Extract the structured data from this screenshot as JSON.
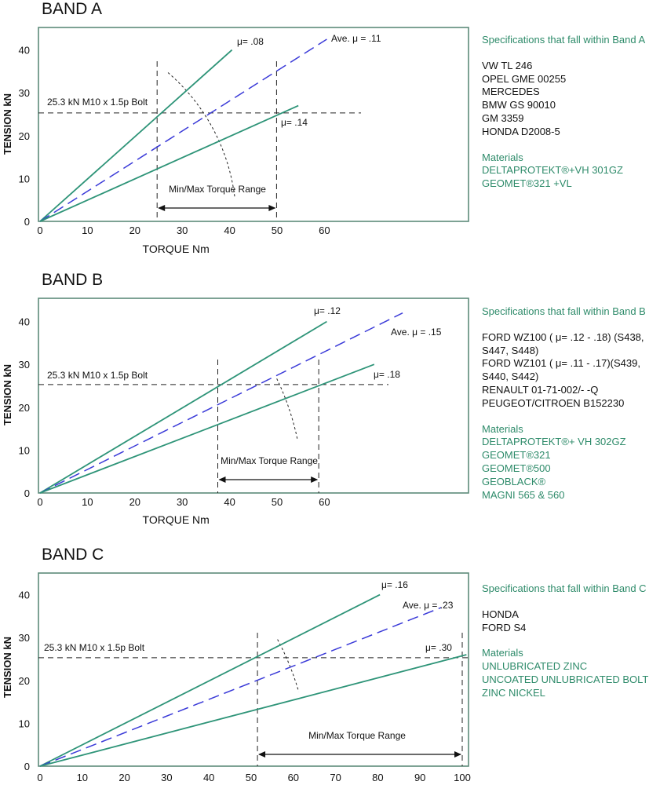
{
  "colors": {
    "frame": "#5d8a7a",
    "green": "#2e9478",
    "blue": "#3a3ad8",
    "text": "#111111",
    "accent_text": "#2e8b6a"
  },
  "bands": [
    {
      "title": "BAND A",
      "side": {
        "heading": "Specifications that fall within Band A",
        "specs": [
          "VW TL 246",
          "OPEL GME 00255",
          "MERCEDES",
          "BMW GS 90010",
          "GM 3359",
          "HONDA D2008-5"
        ],
        "materials_heading": "Materials",
        "materials": [
          "DELTAPROTEKT®+VH 301GZ",
          "GEOMET®321 +VL"
        ]
      }
    },
    {
      "title": "BAND B",
      "side": {
        "heading": "Specifications that fall within Band B",
        "specs": [
          "FORD WZ100 ( μ= .12 - .18) (S438,",
          "S447, S448)",
          "FORD WZ101 ( μ= .11 - .17)(S439,",
          "S440, S442)",
          "RENAULT 01-71-002/- -Q",
          "PEUGEOT/CITROEN B152230"
        ],
        "materials_heading": "Materials",
        "materials": [
          "DELTAPROTEKT®+ VH 302GZ",
          "GEOMET®321",
          "GEOMET®500",
          "GEOBLACK®",
          "MAGNI 565 & 560"
        ]
      }
    },
    {
      "title": "BAND C",
      "side": {
        "heading": "Specifications that fall within Band C",
        "specs": [
          "HONDA",
          "FORD S4"
        ],
        "materials_heading": "Materials",
        "materials": [
          "UNLUBRICATED ZINC",
          "UNCOATED UNLUBRICATED BOLT",
          "ZINC NICKEL"
        ]
      }
    }
  ],
  "chart_data": [
    {
      "type": "line",
      "title": "BAND A",
      "xlabel": "TORQUE Nm",
      "ylabel": "TENSION kN",
      "xlim": [
        0,
        90
      ],
      "ylim": [
        0,
        45
      ],
      "xticks": [
        0,
        10,
        20,
        30,
        40,
        50,
        60
      ],
      "yticks": [
        0,
        10,
        20,
        30,
        40
      ],
      "series": [
        {
          "name": "μ= .08",
          "style": "solid",
          "x": [
            0,
            40.5
          ],
          "y": [
            0,
            40
          ]
        },
        {
          "name": "Ave. μ = .11",
          "style": "dashed",
          "x": [
            0,
            60.5
          ],
          "y": [
            0,
            42.5
          ]
        },
        {
          "name": "μ= .14",
          "style": "solid",
          "x": [
            0,
            54.5
          ],
          "y": [
            0,
            27
          ]
        }
      ],
      "reference_line": {
        "label": "25.3 kN  M10 x 1.5p Bolt",
        "y": 25.3
      },
      "torque_range": {
        "label": "Min/Max Torque Range",
        "min": 24.7,
        "max": 49.9
      }
    },
    {
      "type": "line",
      "title": "BAND B",
      "xlabel": "TORQUE Nm",
      "ylabel": "TENSION kN",
      "xlim": [
        0,
        90
      ],
      "ylim": [
        0,
        45
      ],
      "xticks": [
        0,
        10,
        20,
        30,
        40,
        50,
        60
      ],
      "yticks": [
        0,
        10,
        20,
        30,
        40
      ],
      "series": [
        {
          "name": "μ= .12",
          "style": "solid",
          "x": [
            0,
            60.5
          ],
          "y": [
            0,
            40
          ]
        },
        {
          "name": "Ave. μ = .15",
          "style": "dashed",
          "x": [
            0,
            76.5
          ],
          "y": [
            0,
            42
          ]
        },
        {
          "name": "μ= .18",
          "style": "solid",
          "x": [
            0,
            70.5
          ],
          "y": [
            0,
            30
          ]
        }
      ],
      "reference_line": {
        "label": "25.3 kN  M10 x 1.5p Bolt",
        "y": 25.3
      },
      "torque_range": {
        "label": "Min/Max Torque Range",
        "min": 37.5,
        "max": 58.8
      }
    },
    {
      "type": "line",
      "title": "BAND C",
      "xlabel": "",
      "ylabel": "TENSION kN",
      "xlim": [
        0,
        101
      ],
      "ylim": [
        0,
        45
      ],
      "xticks": [
        0,
        10,
        20,
        30,
        40,
        50,
        60,
        70,
        80,
        90,
        100
      ],
      "yticks": [
        0,
        10,
        20,
        30,
        40
      ],
      "series": [
        {
          "name": "μ= .16",
          "style": "solid",
          "x": [
            0,
            80.5
          ],
          "y": [
            0,
            40
          ]
        },
        {
          "name": "Ave. μ = .23",
          "style": "dashed",
          "x": [
            0,
            95
          ],
          "y": [
            0,
            37
          ]
        },
        {
          "name": "μ= .30",
          "style": "solid",
          "x": [
            0,
            101
          ],
          "y": [
            0,
            26
          ]
        }
      ],
      "reference_line": {
        "label": "25.3 kN  M10 x 1.5p Bolt",
        "y": 25.3
      },
      "torque_range": {
        "label": "Min/Max Torque Range",
        "min": 51.5,
        "max": 100
      }
    }
  ]
}
